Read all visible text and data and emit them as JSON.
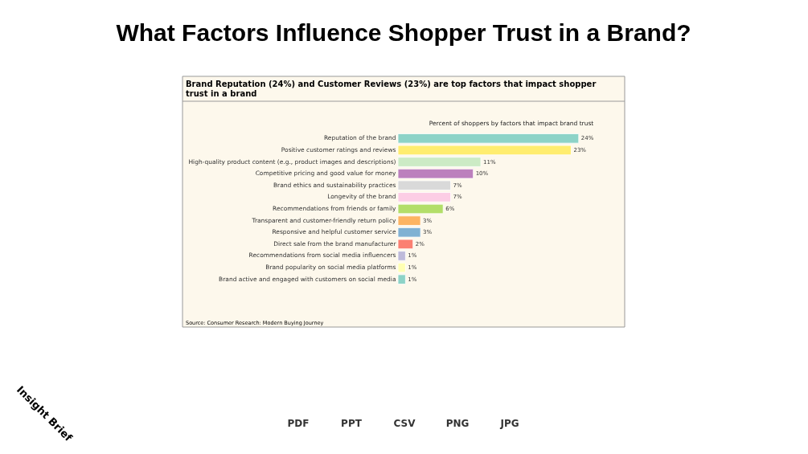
{
  "chart_data": {
    "type": "bar",
    "orientation": "horizontal",
    "title": "What Factors Influence Shopper Trust in a Brand?",
    "subtitle": "Brand Reputation (24%) and Customer Reviews (23%) are top factors that impact shopper trust in a brand",
    "xlabel": "Percent of shoppers by factors that impact brand trust",
    "categories": [
      "Reputation of the brand",
      "Positive customer ratings and reviews",
      "High-quality product content (e.g., product images and descriptions)",
      "Competitive pricing and good value for money",
      "Brand ethics and sustainability practices",
      "Longevity of the brand",
      "Recommendations from friends or family",
      "Transparent and customer-friendly return policy",
      "Responsive and helpful customer service",
      "Direct sale from the brand manufacturer",
      "Recommendations from social media influencers",
      "Brand popularity on social media platforms",
      "Brand active and engaged with customers on social media"
    ],
    "values": [
      24,
      23,
      11,
      10,
      7,
      7,
      6,
      3,
      3,
      2,
      1,
      1,
      1
    ],
    "value_labels": [
      "24%",
      "23%",
      "11%",
      "10%",
      "7%",
      "7%",
      "6%",
      "3%",
      "3%",
      "2%",
      "1%",
      "1%",
      "1%"
    ],
    "colors": [
      "#8dd3c7",
      "#ffed6f",
      "#ccebc5",
      "#bc80bd",
      "#d9d9d9",
      "#fccde5",
      "#b3de69",
      "#fdb462",
      "#80b1d3",
      "#fb8072",
      "#bebada",
      "#ffffb3",
      "#8dd3c7"
    ],
    "tick_labels": "y",
    "annotations": [
      "Source: Consumer Research: Modern Buying Journey",
      "Insight Brief",
      "PDF",
      "PPT",
      "CSV",
      "PNG",
      "JPG"
    ]
  }
}
